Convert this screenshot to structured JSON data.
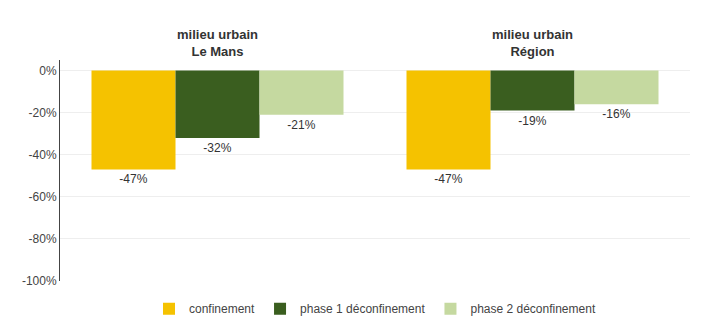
{
  "chart_data": {
    "type": "bar",
    "categories": [
      "milieu urbain\nLe Mans",
      "milieu urbain\nRégion"
    ],
    "series": [
      {
        "name": "confinement",
        "color": "#F5C200",
        "values": [
          -47,
          -47
        ],
        "value_labels": [
          "-47%",
          "-47%"
        ]
      },
      {
        "name": "phase 1 déconfinement",
        "color": "#3A5E1F",
        "values": [
          -32,
          -19
        ],
        "value_labels": [
          "-32%",
          "-19%"
        ]
      },
      {
        "name": "phase 2 déconfinement",
        "color": "#C5D9A0",
        "values": [
          -21,
          -16
        ],
        "value_labels": [
          "-21%",
          "-16%"
        ]
      }
    ],
    "ylim": [
      -100,
      5
    ],
    "yticks": [
      {
        "value": 0,
        "label": "0%"
      },
      {
        "value": -20,
        "label": "-20%"
      },
      {
        "value": -40,
        "label": "-40%"
      },
      {
        "value": -60,
        "label": "-60%"
      },
      {
        "value": -80,
        "label": "-80%"
      },
      {
        "value": -100,
        "label": "-100%"
      }
    ],
    "grid": true,
    "legend": "bottom",
    "data_labels": true
  }
}
